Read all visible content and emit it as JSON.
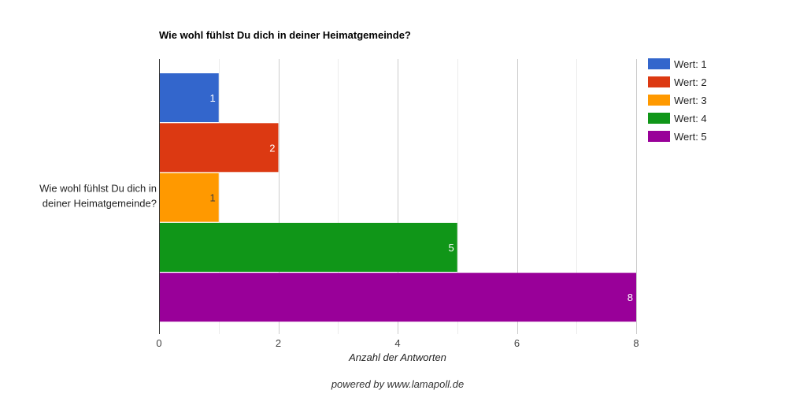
{
  "chart_data": {
    "type": "bar",
    "orientation": "horizontal",
    "title": "Wie wohl fühlst Du dich in deiner Heimatgemeinde?",
    "categories": [
      "Wie wohl fühlst Du dich in deiner Heimatgemeinde?"
    ],
    "series": [
      {
        "name": "Wert: 1",
        "values": [
          1
        ],
        "color": "#3366cc",
        "label_color": "#ffffff"
      },
      {
        "name": "Wert: 2",
        "values": [
          2
        ],
        "color": "#dc3912",
        "label_color": "#ffffff"
      },
      {
        "name": "Wert: 3",
        "values": [
          1
        ],
        "color": "#ff9900",
        "label_color": "#404040"
      },
      {
        "name": "Wert: 4",
        "values": [
          5
        ],
        "color": "#109618",
        "label_color": "#ffffff"
      },
      {
        "name": "Wert: 5",
        "values": [
          8
        ],
        "color": "#990099",
        "label_color": "#ffffff"
      }
    ],
    "xlabel": "Anzahl der Antworten",
    "ylabel": "",
    "xlim": [
      0,
      8
    ],
    "xticks": [
      0,
      2,
      4,
      6,
      8
    ],
    "grid": true,
    "legend": "right"
  },
  "footer": "powered by www.lamapoll.de"
}
